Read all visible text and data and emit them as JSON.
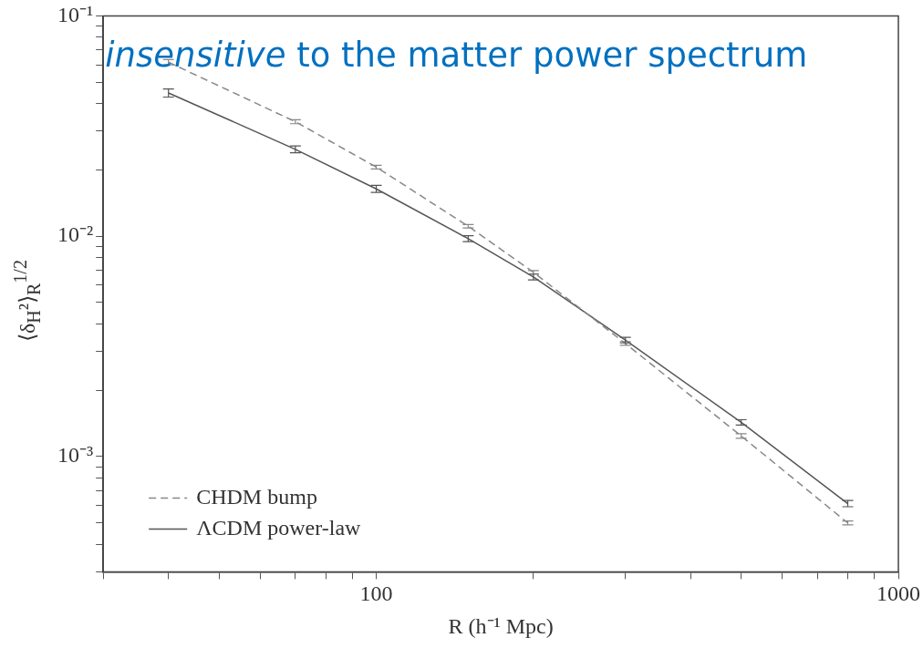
{
  "chart_data": {
    "type": "line",
    "xlabel": "R (h⁻¹ Mpc)",
    "ylabel": "⟨δ$_{H}$²⟩$_{R}$$^{1/2}$",
    "annotations": [
      "insensitive",
      "to the matter power spectrum"
    ],
    "x": [
      40,
      70,
      100,
      150,
      200,
      300,
      500,
      800
    ],
    "series": [
      {
        "name": "CHDM bump",
        "color": "#888888",
        "line_style": "dashed",
        "values": [
          0.0616,
          0.0331,
          0.0206,
          0.0111,
          0.00686,
          0.00326,
          0.00124,
          0.0005
        ],
        "errors": [
          0.0017,
          0.0007,
          0.0004,
          0.0002,
          0.00013,
          6e-05,
          3e-05,
          1e-05
        ]
      },
      {
        "name": "ΛCDM power-law",
        "color": "#555555",
        "line_style": "solid",
        "values": [
          0.0447,
          0.0248,
          0.0164,
          0.00975,
          0.00653,
          0.00338,
          0.00143,
          0.000612
        ],
        "errors": [
          0.0019,
          0.0009,
          0.0006,
          0.0003,
          0.0002,
          0.0001,
          4e-05,
          2e-05
        ]
      }
    ],
    "log": "xy",
    "xlim": [
      30,
      1000
    ],
    "xticks": [
      {
        "value": 30,
        "label": null
      },
      {
        "value": 40,
        "label": null
      },
      {
        "value": 50,
        "label": null
      },
      {
        "value": 60,
        "label": null
      },
      {
        "value": 70,
        "label": null
      },
      {
        "value": 80,
        "label": null
      },
      {
        "value": 90,
        "label": null
      },
      100,
      {
        "value": 200,
        "label": null
      },
      {
        "value": 300,
        "label": null
      },
      {
        "value": 400,
        "label": null
      },
      {
        "value": 500,
        "label": null
      },
      {
        "value": 600,
        "label": null
      },
      {
        "value": 700,
        "label": null
      },
      {
        "value": 800,
        "label": null
      },
      {
        "value": 900,
        "label": null
      },
      1000
    ],
    "ylim": [
      0.0003,
      0.1
    ],
    "yticks": [
      {
        "value": 0.0003,
        "label": null
      },
      {
        "value": 0.0004,
        "label": null
      },
      {
        "value": 0.0005,
        "label": null
      },
      {
        "value": 0.0006,
        "label": null
      },
      {
        "value": 0.0007,
        "label": null
      },
      {
        "value": 0.0008,
        "label": null
      },
      {
        "value": 0.0009,
        "label": null
      },
      {
        "value": 0.001,
        "label": "10⁻³"
      },
      {
        "value": 0.002,
        "label": null
      },
      {
        "value": 0.003,
        "label": null
      },
      {
        "value": 0.004,
        "label": null
      },
      {
        "value": 0.005,
        "label": null
      },
      {
        "value": 0.006,
        "label": null
      },
      {
        "value": 0.007,
        "label": null
      },
      {
        "value": 0.008,
        "label": null
      },
      {
        "value": 0.009,
        "label": null
      },
      {
        "value": 0.01,
        "label": "10⁻²"
      },
      {
        "value": 0.02,
        "label": null
      },
      {
        "value": 0.03,
        "label": null
      },
      {
        "value": 0.04,
        "label": null
      },
      {
        "value": 0.05,
        "label": null
      },
      {
        "value": 0.06,
        "label": null
      },
      {
        "value": 0.07,
        "label": null
      },
      {
        "value": 0.08,
        "label": null
      },
      {
        "value": 0.09,
        "label": null
      },
      {
        "value": 0.1,
        "label": "10⁻¹"
      }
    ],
    "grid": false,
    "legend": "bottom left",
    "marker": "none"
  }
}
